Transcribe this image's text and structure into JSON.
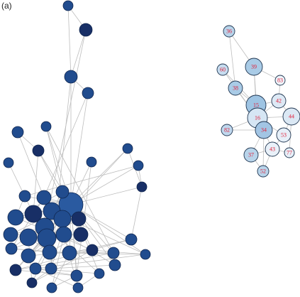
{
  "panel_label": "(a)",
  "nodes": [
    {
      "label": "36"
    },
    {
      "label": "60"
    },
    {
      "label": "39"
    },
    {
      "label": "83"
    },
    {
      "label": "38"
    },
    {
      "label": "42"
    },
    {
      "label": "15"
    },
    {
      "label": "16"
    },
    {
      "label": "44"
    },
    {
      "label": "82"
    },
    {
      "label": "34"
    },
    {
      "label": "53"
    },
    {
      "label": "37"
    },
    {
      "label": "43"
    },
    {
      "label": "77"
    },
    {
      "label": "52"
    }
  ]
}
